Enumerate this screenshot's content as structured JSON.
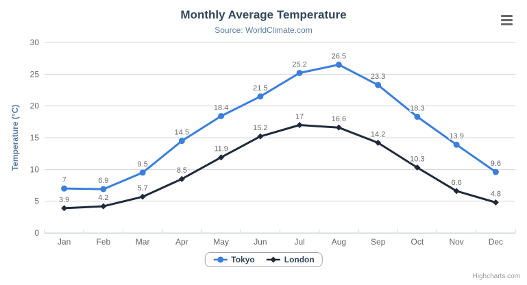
{
  "header": {
    "title": "Monthly Average Temperature",
    "subtitle": "Source: WorldClimate.com"
  },
  "credits_label": "Highcharts.com",
  "colors": {
    "title": "#33475b",
    "subtitle": "#5b7da1",
    "axis_title": "#5b7a9c",
    "axis_label": "#666666",
    "grid": "#d4d4d4",
    "axis_line": "#ccd6eb",
    "data_label": "#666666",
    "legend_text": "#33475b",
    "legend_border": "#a3a3a3",
    "credits": "#999999",
    "menu_icon": "#666666",
    "tokyo": "#3b7edb",
    "london": "#1f2b3a"
  },
  "chart_data": {
    "type": "line",
    "title": "Monthly Average Temperature",
    "subtitle": "Source: WorldClimate.com",
    "categories": [
      "Jan",
      "Feb",
      "Mar",
      "Apr",
      "May",
      "Jun",
      "Jul",
      "Aug",
      "Sep",
      "Oct",
      "Nov",
      "Dec"
    ],
    "series": [
      {
        "name": "Tokyo",
        "color": "#3b7edb",
        "marker": "circle",
        "values": [
          7,
          6.9,
          9.5,
          14.5,
          18.4,
          21.5,
          25.2,
          26.5,
          23.3,
          18.3,
          13.9,
          9.6
        ]
      },
      {
        "name": "London",
        "color": "#1f2b3a",
        "marker": "diamond",
        "values": [
          3.9,
          4.2,
          5.7,
          8.5,
          11.9,
          15.2,
          17,
          16.6,
          14.2,
          10.3,
          6.6,
          4.8
        ]
      }
    ],
    "xlabel": "",
    "ylabel": "Temperature (°C)",
    "ylim": [
      0,
      30
    ],
    "ytick_step": 5,
    "grid": true,
    "data_labels": true,
    "legend_position": "bottom"
  }
}
